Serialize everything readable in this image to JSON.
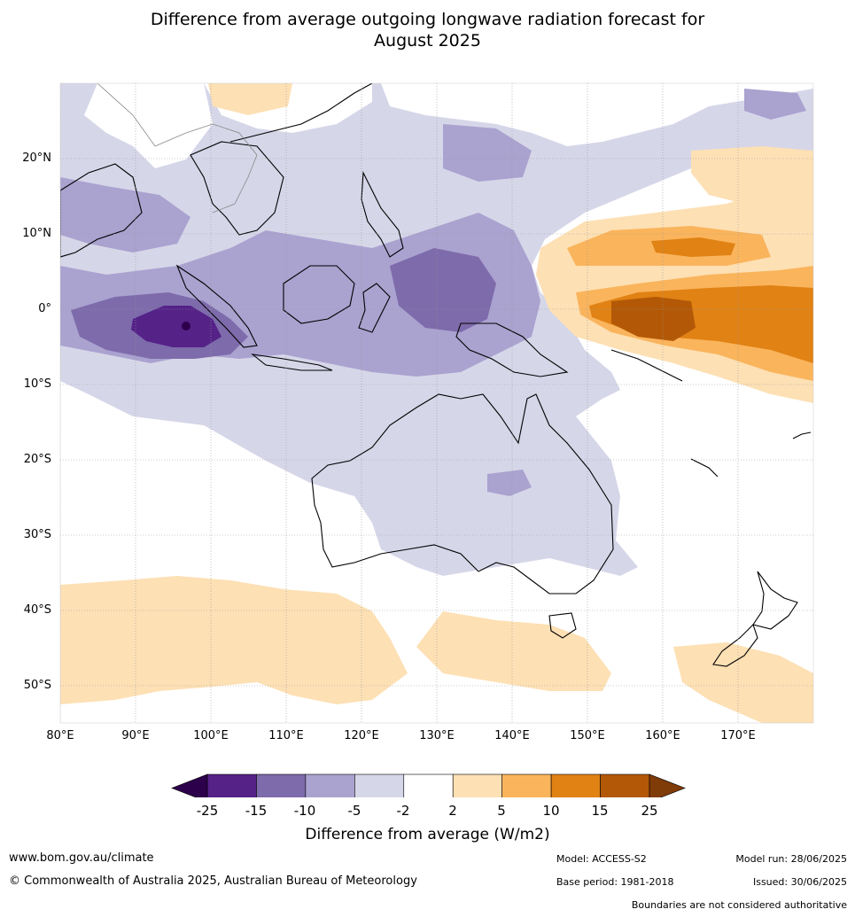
{
  "title": {
    "line1": "Difference from average outgoing longwave radiation forecast for",
    "line2": "August 2025"
  },
  "axes": {
    "lat_labels": [
      "20°N",
      "10°N",
      "0°",
      "10°S",
      "20°S",
      "30°S",
      "40°S",
      "50°S"
    ],
    "lon_labels": [
      "80°E",
      "90°E",
      "100°E",
      "110°E",
      "120°E",
      "130°E",
      "140°E",
      "150°E",
      "160°E",
      "170°E"
    ]
  },
  "colorbar": {
    "ticks": [
      "-25",
      "-15",
      "-10",
      "-5",
      "-2",
      "2",
      "5",
      "10",
      "15",
      "25"
    ],
    "colors": [
      "#552288",
      "#7d6bab",
      "#aaa2cf",
      "#d6d6e9",
      "#ffffff",
      "#fde0b4",
      "#fab45c",
      "#e08214",
      "#b35806"
    ],
    "under_color": "#2d004b",
    "over_color": "#7f3b08",
    "title": "Difference from average (W/m2)"
  },
  "footer": {
    "website": "www.bom.gov.au/climate",
    "copyright": "© Commonwealth of Australia 2025, Australian Bureau of Meteorology",
    "model": "Model: ACCESS-S2",
    "base_period": "Base period: 1981-2018",
    "model_run": "Model run: 28/06/2025",
    "issued": "Issued: 30/06/2025",
    "disclaimer": "Boundaries are not considered authoritative"
  }
}
